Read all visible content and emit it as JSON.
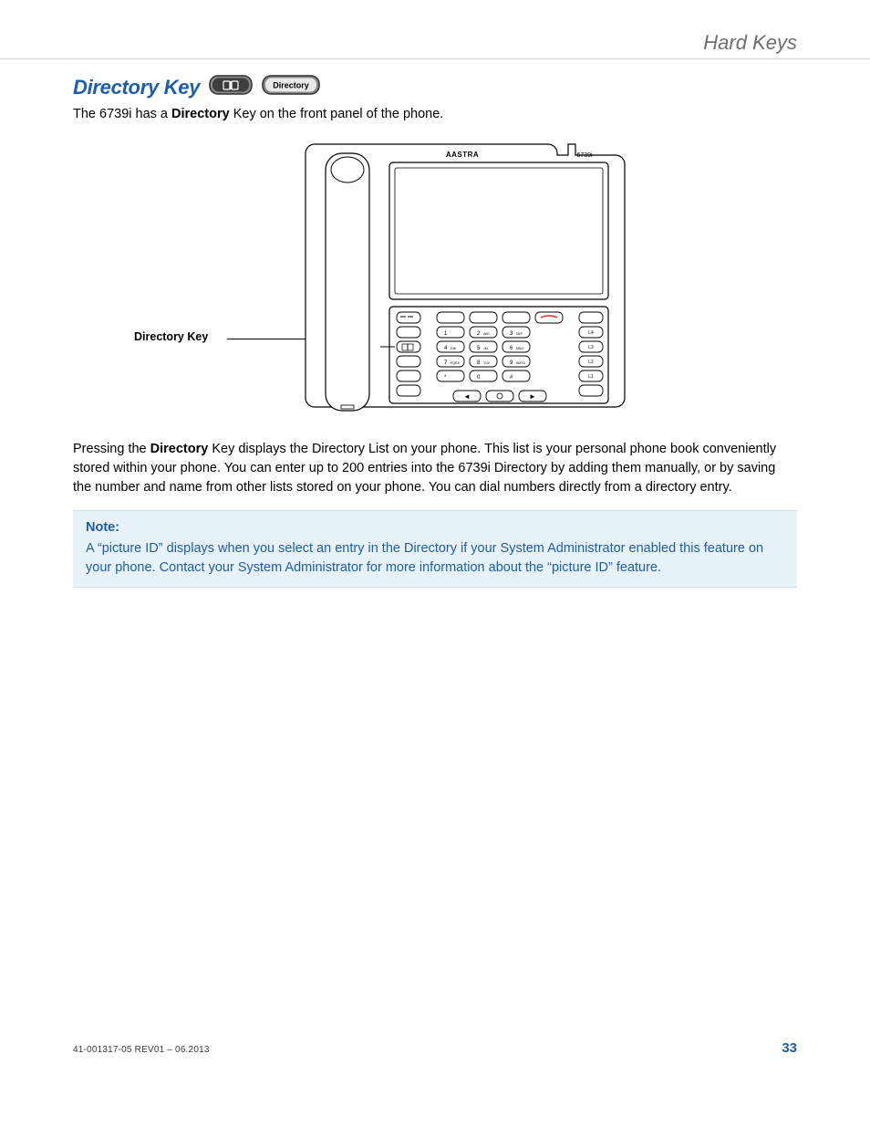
{
  "header": {
    "section_title": "Hard Keys"
  },
  "heading": {
    "text": "Directory Key"
  },
  "intro": {
    "pre": "The 6739i has a ",
    "bold": "Directory",
    "post": " Key on the front panel of the phone."
  },
  "diagram": {
    "callout_label": "Directory Key",
    "brand": "AASTRA",
    "model": "6739i",
    "keypad": {
      "rows": [
        [
          "1",
          "2 ABC",
          "3 DEF"
        ],
        [
          "4 GHI",
          "5 JKL",
          "6 MNO"
        ],
        [
          "7 PQRS",
          "8 TUV",
          "9 WXYZ"
        ],
        [
          "*",
          "0",
          "#"
        ]
      ],
      "right_col": [
        "L4",
        "L3",
        "L2",
        "L1",
        ""
      ],
      "left_col_icons": [
        "goodbye",
        "options",
        "directory",
        "callers",
        "conf",
        "xfer"
      ],
      "nav_row": [
        "vol-",
        "speaker",
        "vol+"
      ]
    },
    "colors": {
      "stroke": "#000000",
      "fill": "#ffffff",
      "screen_fill": "#ffffff",
      "red_key": "#d33"
    }
  },
  "paragraph": {
    "pre": "Pressing the ",
    "bold": "Directory",
    "post": " Key displays the Directory List on your phone. This list is your personal phone book conveniently stored within your phone. You can enter up to 200 entries into the 6739i Directory by adding them manually, or by saving the number and name from other lists stored on your phone. You can dial numbers directly from a directory entry."
  },
  "note": {
    "label": "Note:",
    "body": "A “picture ID” displays when you select an entry in the Directory if your System Administrator enabled this feature on your phone. Contact your System Administrator for more information about the “picture ID” feature."
  },
  "footer": {
    "rev": "41-001317-05 REV01 – 06.2013",
    "page": "33"
  },
  "styling": {
    "accent_color": "#1c5fa8",
    "note_bg": "#e8f2f9",
    "muted_text": "#6f6f6f",
    "rule_color": "#cfcfcf",
    "body_font_size_pt": 11,
    "heading_font_size_pt": 16
  }
}
